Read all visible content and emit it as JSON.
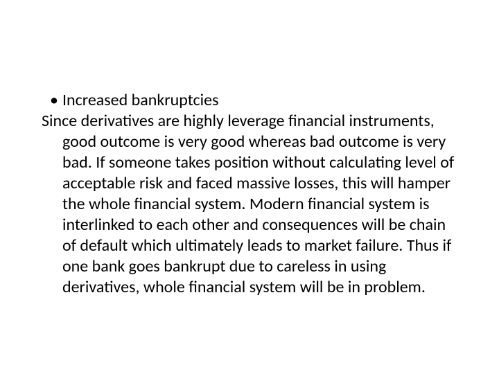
{
  "slide": {
    "background_color": "#ffffff",
    "text_color": "#000000",
    "font_family": "Calibri",
    "font_size_pt": 24,
    "bullet": {
      "marker": "•",
      "text": "Increased bankruptcies"
    },
    "paragraph": "Since derivatives are highly leverage financial instruments, good outcome is very good whereas bad outcome is very bad. If someone takes position without calculating level of acceptable risk and faced massive losses, this will hamper the whole financial system. Modern financial system is interlinked to each other and consequences will be chain of default which ultimately leads to market failure. Thus if one bank goes bankrupt due to careless in using derivatives, whole financial system will be in problem."
  }
}
